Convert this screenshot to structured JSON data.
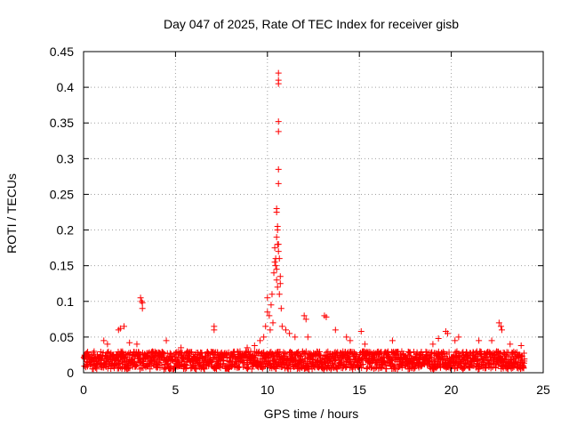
{
  "chart_data": {
    "type": "scatter",
    "title": "Day 047 of 2025, Rate Of TEC Index for receiver gisb",
    "xlabel": "GPS time / hours",
    "ylabel": "ROTI / TECUs",
    "xlim": [
      0,
      25
    ],
    "ylim": [
      0,
      0.45
    ],
    "xticks": [
      0,
      5,
      10,
      15,
      20,
      25
    ],
    "yticks": [
      0,
      0.05,
      0.1,
      0.15,
      0.2,
      0.25,
      0.3,
      0.35,
      0.4,
      0.45
    ],
    "xtick_labels": [
      "0",
      "5",
      "10",
      "15",
      "20",
      "25"
    ],
    "ytick_labels": [
      "0",
      "0.05",
      "0.1",
      "0.15",
      "0.2",
      "0.25",
      "0.3",
      "0.35",
      "0.4",
      "0.45"
    ],
    "grid": true,
    "marker": "plus",
    "color": "#ff0000",
    "baseline": {
      "x_start": 0.0,
      "x_end": 24.0,
      "step": 0.05,
      "level_min": 0.005,
      "level_max": 0.03
    },
    "points": [
      [
        1.1,
        0.045
      ],
      [
        1.3,
        0.04
      ],
      [
        1.9,
        0.06
      ],
      [
        2.0,
        0.062
      ],
      [
        2.2,
        0.065
      ],
      [
        2.5,
        0.042
      ],
      [
        2.9,
        0.04
      ],
      [
        3.1,
        0.105
      ],
      [
        3.15,
        0.1
      ],
      [
        3.2,
        0.098
      ],
      [
        3.2,
        0.09
      ],
      [
        4.5,
        0.045
      ],
      [
        5.3,
        0.035
      ],
      [
        7.1,
        0.065
      ],
      [
        7.1,
        0.06
      ],
      [
        8.9,
        0.035
      ],
      [
        9.3,
        0.038
      ],
      [
        9.6,
        0.045
      ],
      [
        9.8,
        0.05
      ],
      [
        9.9,
        0.065
      ],
      [
        10.0,
        0.105
      ],
      [
        10.0,
        0.085
      ],
      [
        10.1,
        0.08
      ],
      [
        10.15,
        0.06
      ],
      [
        10.2,
        0.095
      ],
      [
        10.25,
        0.11
      ],
      [
        10.3,
        0.07
      ],
      [
        10.35,
        0.14
      ],
      [
        10.4,
        0.155
      ],
      [
        10.4,
        0.175
      ],
      [
        10.45,
        0.16
      ],
      [
        10.45,
        0.15
      ],
      [
        10.5,
        0.23
      ],
      [
        10.5,
        0.225
      ],
      [
        10.5,
        0.19
      ],
      [
        10.5,
        0.145
      ],
      [
        10.5,
        0.13
      ],
      [
        10.55,
        0.205
      ],
      [
        10.55,
        0.2
      ],
      [
        10.55,
        0.18
      ],
      [
        10.55,
        0.12
      ],
      [
        10.6,
        0.42
      ],
      [
        10.6,
        0.41
      ],
      [
        10.6,
        0.405
      ],
      [
        10.6,
        0.352
      ],
      [
        10.6,
        0.338
      ],
      [
        10.6,
        0.285
      ],
      [
        10.6,
        0.265
      ],
      [
        10.6,
        0.18
      ],
      [
        10.6,
        0.17
      ],
      [
        10.65,
        0.16
      ],
      [
        10.65,
        0.11
      ],
      [
        10.7,
        0.135
      ],
      [
        10.7,
        0.125
      ],
      [
        10.75,
        0.09
      ],
      [
        10.8,
        0.065
      ],
      [
        11.0,
        0.06
      ],
      [
        11.2,
        0.055
      ],
      [
        11.5,
        0.05
      ],
      [
        12.0,
        0.08
      ],
      [
        12.1,
        0.075
      ],
      [
        12.2,
        0.05
      ],
      [
        13.1,
        0.08
      ],
      [
        13.2,
        0.078
      ],
      [
        13.7,
        0.06
      ],
      [
        14.3,
        0.05
      ],
      [
        14.5,
        0.045
      ],
      [
        15.1,
        0.058
      ],
      [
        15.3,
        0.04
      ],
      [
        16.8,
        0.045
      ],
      [
        19.0,
        0.04
      ],
      [
        19.3,
        0.048
      ],
      [
        19.7,
        0.058
      ],
      [
        19.8,
        0.055
      ],
      [
        20.2,
        0.045
      ],
      [
        20.4,
        0.05
      ],
      [
        21.5,
        0.045
      ],
      [
        22.2,
        0.045
      ],
      [
        22.6,
        0.07
      ],
      [
        22.7,
        0.065
      ],
      [
        22.75,
        0.06
      ],
      [
        23.2,
        0.04
      ],
      [
        23.8,
        0.038
      ]
    ]
  }
}
